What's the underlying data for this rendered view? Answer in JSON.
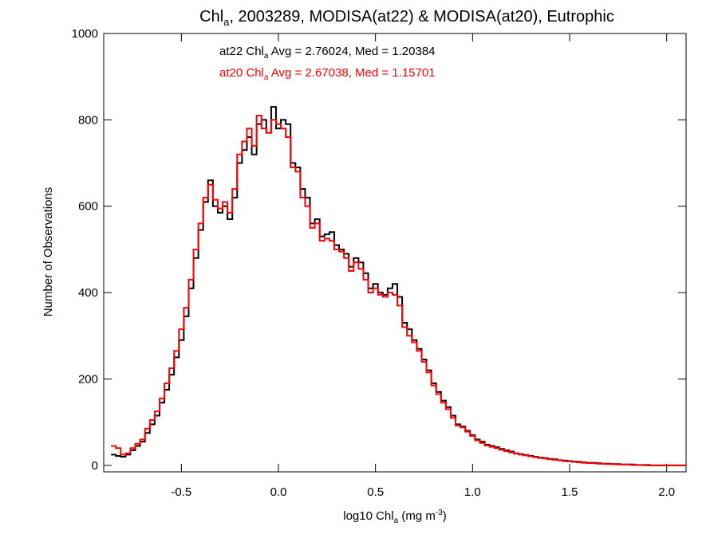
{
  "chart_data": {
    "type": "line",
    "title": {
      "main": "Chl",
      "sub": "a",
      "rest": ", 2003289, MODISA(at22) & MODISA(at20), Eutrophic"
    },
    "xlabel": {
      "pre": "log10 Chl",
      "sub": "a",
      "mid": " (mg m",
      "sup": "-3",
      "post": ")"
    },
    "ylabel": "Number of Observations",
    "xlim": [
      -0.9,
      2.1
    ],
    "ylim": [
      -15,
      1000
    ],
    "xticks": [
      -0.5,
      0.0,
      0.5,
      1.0,
      1.5,
      2.0
    ],
    "xtick_labels": [
      "-0.5",
      "0.0",
      "0.5",
      "1.0",
      "1.5",
      "2.0"
    ],
    "yticks": [
      0,
      200,
      400,
      600,
      800,
      1000
    ],
    "ytick_labels": [
      "0",
      "200",
      "400",
      "600",
      "800",
      "1000"
    ],
    "annotations": [
      {
        "pre": "at22 Chl",
        "sub": "a",
        "post": " Avg = 2.76024, Med = 1.20384",
        "color": "#000000"
      },
      {
        "pre": "at20 Chl",
        "sub": "a",
        "post": " Avg = 2.67038, Med = 1.15701",
        "color": "#ff0000"
      }
    ],
    "series": [
      {
        "color": "#000000",
        "step": 0.025,
        "x": [
          -0.85,
          -0.825,
          -0.8,
          -0.775,
          -0.75,
          -0.725,
          -0.7,
          -0.675,
          -0.65,
          -0.625,
          -0.6,
          -0.575,
          -0.55,
          -0.525,
          -0.5,
          -0.475,
          -0.45,
          -0.425,
          -0.4,
          -0.375,
          -0.35,
          -0.325,
          -0.3,
          -0.275,
          -0.25,
          -0.225,
          -0.2,
          -0.175,
          -0.15,
          -0.125,
          -0.1,
          -0.075,
          -0.05,
          -0.025,
          0.0,
          0.025,
          0.05,
          0.075,
          0.1,
          0.125,
          0.15,
          0.175,
          0.2,
          0.225,
          0.25,
          0.275,
          0.3,
          0.325,
          0.35,
          0.375,
          0.4,
          0.425,
          0.45,
          0.475,
          0.5,
          0.525,
          0.55,
          0.575,
          0.6,
          0.625,
          0.65,
          0.675,
          0.7,
          0.725,
          0.75,
          0.775,
          0.8,
          0.825,
          0.85,
          0.875,
          0.9,
          0.925,
          0.95,
          0.975,
          1.0,
          1.025,
          1.05,
          1.075,
          1.1,
          1.125,
          1.15,
          1.175,
          1.2,
          1.225,
          1.25,
          1.275,
          1.3,
          1.325,
          1.35,
          1.375,
          1.4,
          1.425,
          1.45,
          1.475,
          1.5,
          1.525,
          1.55,
          1.575,
          1.6,
          1.625,
          1.65,
          1.675,
          1.7,
          1.725,
          1.75,
          1.775,
          1.8,
          1.825,
          1.85,
          1.875,
          1.9,
          1.925,
          1.95,
          1.975,
          2.0
        ],
        "y": [
          25,
          22,
          20,
          25,
          35,
          45,
          55,
          75,
          95,
          115,
          145,
          175,
          210,
          250,
          290,
          345,
          410,
          480,
          545,
          610,
          660,
          600,
          585,
          600,
          570,
          620,
          700,
          730,
          760,
          720,
          790,
          800,
          770,
          830,
          780,
          800,
          790,
          700,
          690,
          640,
          620,
          560,
          570,
          530,
          535,
          540,
          510,
          500,
          490,
          460,
          480,
          470,
          445,
          410,
          420,
          400,
          395,
          410,
          420,
          390,
          330,
          315,
          290,
          270,
          245,
          220,
          190,
          170,
          150,
          135,
          115,
          95,
          90,
          80,
          70,
          60,
          55,
          48,
          45,
          42,
          38,
          35,
          32,
          28,
          26,
          24,
          22,
          20,
          18,
          17,
          15,
          14,
          12,
          11,
          10,
          9,
          8,
          7,
          6,
          6,
          5,
          4,
          4,
          3,
          3,
          2,
          2,
          2,
          1,
          1,
          1,
          0,
          0,
          0,
          0
        ]
      },
      {
        "color": "#ff0000",
        "step": 0.025,
        "x": [
          -0.85,
          -0.825,
          -0.8,
          -0.775,
          -0.75,
          -0.725,
          -0.7,
          -0.675,
          -0.65,
          -0.625,
          -0.6,
          -0.575,
          -0.55,
          -0.525,
          -0.5,
          -0.475,
          -0.45,
          -0.425,
          -0.4,
          -0.375,
          -0.35,
          -0.325,
          -0.3,
          -0.275,
          -0.25,
          -0.225,
          -0.2,
          -0.175,
          -0.15,
          -0.125,
          -0.1,
          -0.075,
          -0.05,
          -0.025,
          0.0,
          0.025,
          0.05,
          0.075,
          0.1,
          0.125,
          0.15,
          0.175,
          0.2,
          0.225,
          0.25,
          0.275,
          0.3,
          0.325,
          0.35,
          0.375,
          0.4,
          0.425,
          0.45,
          0.475,
          0.5,
          0.525,
          0.55,
          0.575,
          0.6,
          0.625,
          0.65,
          0.675,
          0.7,
          0.725,
          0.75,
          0.775,
          0.8,
          0.825,
          0.85,
          0.875,
          0.9,
          0.925,
          0.95,
          0.975,
          1.0,
          1.025,
          1.05,
          1.075,
          1.1,
          1.125,
          1.15,
          1.175,
          1.2,
          1.225,
          1.25,
          1.275,
          1.3,
          1.325,
          1.35,
          1.375,
          1.4,
          1.425,
          1.45,
          1.475,
          1.5,
          1.525,
          1.55,
          1.575,
          1.6,
          1.625,
          1.65,
          1.675,
          1.7,
          1.725,
          1.75,
          1.775,
          1.8,
          1.825,
          1.85,
          1.875,
          1.9,
          1.925,
          1.95,
          1.975,
          2.0
        ],
        "y": [
          45,
          40,
          25,
          28,
          40,
          50,
          60,
          85,
          105,
          125,
          155,
          190,
          225,
          265,
          315,
          365,
          430,
          500,
          560,
          620,
          650,
          615,
          595,
          610,
          585,
          640,
          720,
          750,
          780,
          740,
          810,
          780,
          770,
          800,
          790,
          780,
          760,
          690,
          680,
          620,
          600,
          550,
          560,
          520,
          525,
          520,
          500,
          495,
          480,
          450,
          470,
          455,
          430,
          400,
          410,
          395,
          390,
          400,
          395,
          370,
          320,
          300,
          285,
          265,
          240,
          215,
          185,
          165,
          145,
          130,
          110,
          92,
          88,
          78,
          68,
          58,
          52,
          46,
          43,
          40,
          36,
          33,
          30,
          27,
          25,
          23,
          21,
          19,
          17,
          16,
          14,
          13,
          12,
          10,
          9,
          8,
          7,
          6,
          5,
          5,
          4,
          4,
          3,
          3,
          2,
          2,
          2,
          1,
          1,
          1,
          0,
          0,
          0,
          0,
          0
        ]
      }
    ]
  }
}
